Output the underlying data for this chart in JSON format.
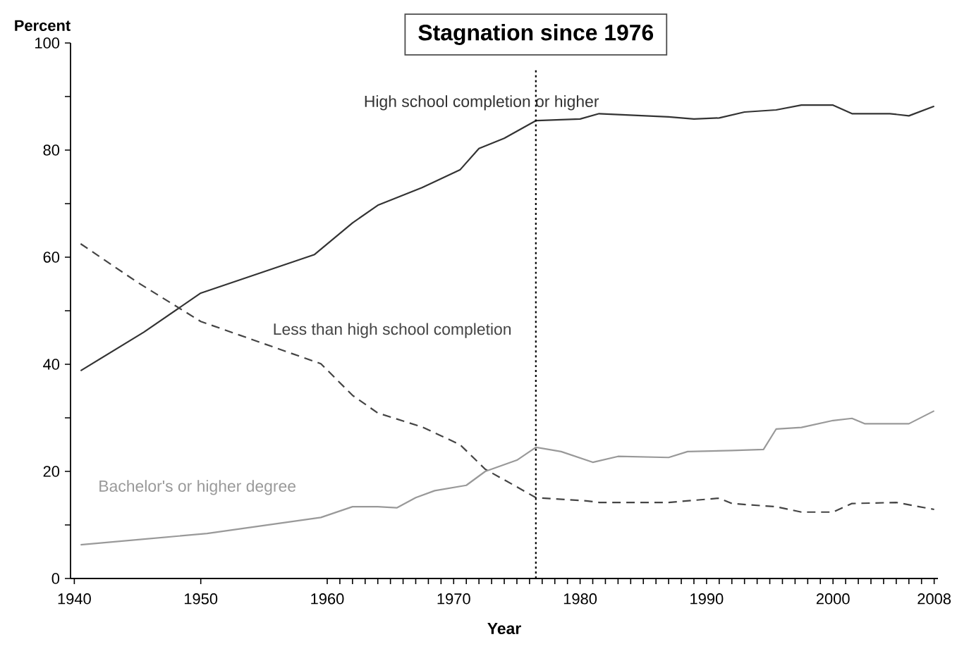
{
  "chart_data": {
    "type": "line",
    "xlabel": "Year",
    "ylabel": "Percent",
    "xlim": [
      1939.7,
      2008.3
    ],
    "ylim": [
      0,
      100
    ],
    "xticks": [
      1940,
      1950,
      1960,
      1970,
      1980,
      1990,
      2000,
      2008,
      {
        "value": 1961,
        "label": null
      },
      {
        "value": 1962,
        "label": null
      },
      {
        "value": 1963,
        "label": null
      },
      {
        "value": 1964,
        "label": null
      },
      {
        "value": 1965,
        "label": null
      },
      {
        "value": 1966,
        "label": null
      },
      {
        "value": 1967,
        "label": null
      },
      {
        "value": 1968,
        "label": null
      },
      {
        "value": 1969,
        "label": null
      },
      {
        "value": 1971,
        "label": null
      },
      {
        "value": 1972,
        "label": null
      },
      {
        "value": 1973,
        "label": null
      },
      {
        "value": 1974,
        "label": null
      },
      {
        "value": 1975,
        "label": null
      },
      {
        "value": 1976,
        "label": null
      },
      {
        "value": 1977,
        "label": null
      },
      {
        "value": 1978,
        "label": null
      },
      {
        "value": 1979,
        "label": null
      },
      {
        "value": 1981,
        "label": null
      },
      {
        "value": 1982,
        "label": null
      },
      {
        "value": 1983,
        "label": null
      },
      {
        "value": 1984,
        "label": null
      },
      {
        "value": 1985,
        "label": null
      },
      {
        "value": 1986,
        "label": null
      },
      {
        "value": 1987,
        "label": null
      },
      {
        "value": 1988,
        "label": null
      },
      {
        "value": 1989,
        "label": null
      },
      {
        "value": 1991,
        "label": null
      },
      {
        "value": 1992,
        "label": null
      },
      {
        "value": 1993,
        "label": null
      },
      {
        "value": 1994,
        "label": null
      },
      {
        "value": 1995,
        "label": null
      },
      {
        "value": 1996,
        "label": null
      },
      {
        "value": 1997,
        "label": null
      },
      {
        "value": 1998,
        "label": null
      },
      {
        "value": 1999,
        "label": null
      },
      {
        "value": 2001,
        "label": null
      },
      {
        "value": 2002,
        "label": null
      },
      {
        "value": 2003,
        "label": null
      },
      {
        "value": 2004,
        "label": null
      },
      {
        "value": 2005,
        "label": null
      },
      {
        "value": 2006,
        "label": null
      },
      {
        "value": 2007,
        "label": null
      }
    ],
    "yticks": [
      0,
      {
        "value": 10,
        "label": null
      },
      20,
      {
        "value": 30,
        "label": null
      },
      40,
      {
        "value": 50,
        "label": null
      },
      60,
      {
        "value": 70,
        "label": null
      },
      80,
      {
        "value": 90,
        "label": null
      },
      100
    ],
    "grid": false,
    "marker": "none",
    "ref_lines": [
      {
        "axis": "x",
        "value": 1976.5,
        "label": "Stagnation since 1976",
        "line_style": "dotted",
        "color": "#000000"
      }
    ],
    "series": [
      {
        "name": "High school completion or higher",
        "color": "#333333",
        "line_style": "solid",
        "x": [
          1940.5,
          1945.5,
          1950,
          1959,
          1962,
          1964,
          1967.5,
          1970.5,
          1972,
          1974,
          1976.5,
          1980,
          1981.5,
          1987,
          1989,
          1991,
          1993,
          1995.5,
          1997.5,
          2000,
          2001.5,
          2004.5,
          2006,
          2008
        ],
        "values": [
          38.8,
          46,
          53.3,
          60.5,
          66.4,
          69.7,
          73,
          76.3,
          80.3,
          82.2,
          85.5,
          85.8,
          86.8,
          86.2,
          85.8,
          86,
          87.1,
          87.5,
          88.4,
          88.4,
          86.8,
          86.8,
          86.4,
          88.2
        ]
      },
      {
        "name": "Less than high school completion",
        "color": "#444444",
        "line_style": "dashed",
        "x": [
          1940.5,
          1945,
          1950,
          1959.5,
          1962,
          1964,
          1967.5,
          1970.5,
          1972.5,
          1975,
          1976.5,
          1980.5,
          1981.5,
          1987,
          1991,
          1992,
          1995.5,
          1997.5,
          2000,
          2001.5,
          2005,
          2008
        ],
        "values": [
          62.5,
          55.3,
          48,
          40.1,
          34.2,
          30.9,
          28.3,
          25,
          20.4,
          17.1,
          15.1,
          14.5,
          14.2,
          14.2,
          15,
          14,
          13.4,
          12.4,
          12.4,
          14,
          14.2,
          12.9
        ]
      },
      {
        "name": "Bachelor's or higher degree",
        "color": "#999999",
        "line_style": "solid",
        "x": [
          1940.5,
          1950.5,
          1959.5,
          1962,
          1964,
          1965.5,
          1967,
          1968.5,
          1971,
          1972.5,
          1975,
          1976.5,
          1978.5,
          1981,
          1983,
          1987,
          1988.5,
          1992,
          1994.5,
          1995.5,
          1997.5,
          2000,
          2001.5,
          2002.5,
          2006,
          2008
        ],
        "values": [
          6.3,
          8.4,
          11.4,
          13.4,
          13.4,
          13.2,
          15.1,
          16.4,
          17.4,
          20,
          22.1,
          24.5,
          23.7,
          21.7,
          22.8,
          22.6,
          23.7,
          23.9,
          24.1,
          27.9,
          28.2,
          29.5,
          29.9,
          28.9,
          28.9,
          31.3
        ]
      }
    ]
  }
}
